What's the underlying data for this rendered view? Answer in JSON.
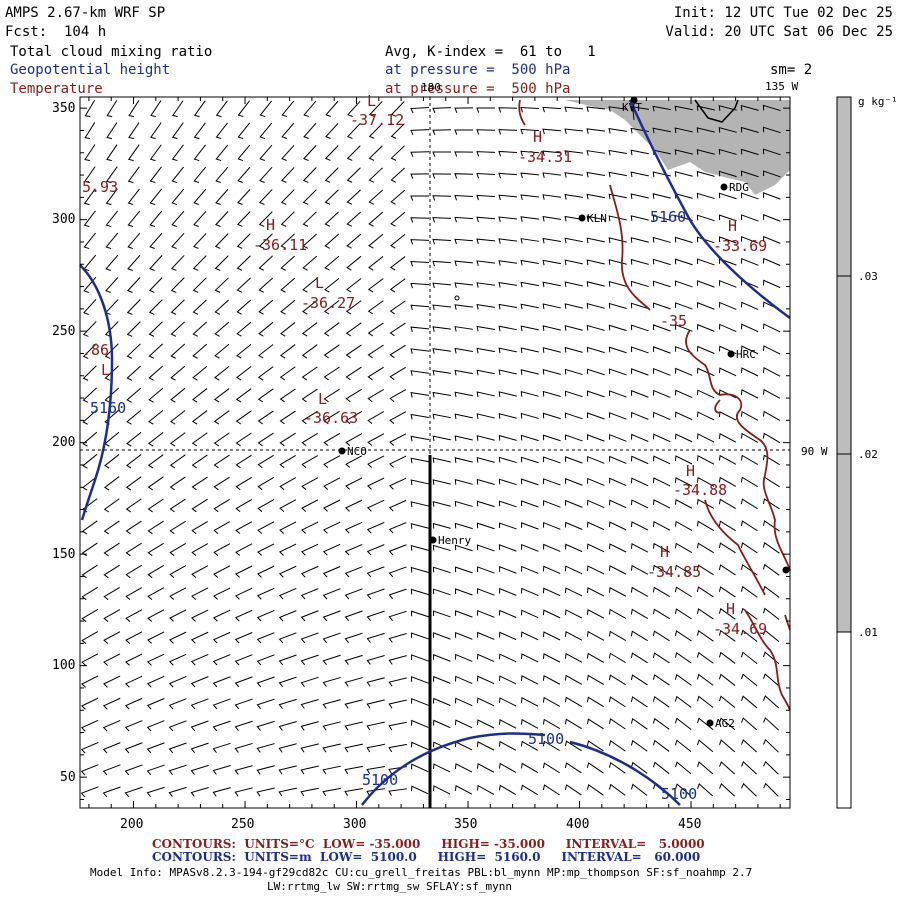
{
  "header": {
    "model": "AMPS 2.67-km WRF SP",
    "forecast": "Fcst:  104 h",
    "init": "Init: 12 UTC Tue 02 Dec 25",
    "valid": "Valid: 20 UTC Sat 06 Dec 25",
    "field1": "Total cloud mixing ratio",
    "field2": "Geopotential height",
    "field3": "Temperature",
    "avg": "Avg, K-index =  61 to   1",
    "pressure1": "at pressure =  500 hPa",
    "pressure2": "at pressure =  500 hPa",
    "sm": "sm= 2"
  },
  "grid_lines": {
    "lon_top": "180",
    "lon_mid": "135 W",
    "lon_right": "90 W"
  },
  "axes": {
    "x_ticks": [
      "200",
      "250",
      "300",
      "350",
      "400",
      "450"
    ],
    "y_ticks": [
      "350",
      "300",
      "250",
      "200",
      "150",
      "100",
      "50"
    ]
  },
  "colorbar": {
    "unit": "g kg⁻¹",
    "ticks": [
      ".03",
      ".02",
      ".01"
    ],
    "colors": {
      "shade": "#bdbdbd",
      "clear": "#ffffff"
    }
  },
  "colors": {
    "height_contour": "#1c2f8f",
    "temperature_contour": "#8a1c1c",
    "cloud_shade": "#b4b4b4"
  },
  "stations": [
    {
      "id": "kvt",
      "label": "KVT"
    },
    {
      "id": "rdg",
      "label": "RDG"
    },
    {
      "id": "kln",
      "label": "KLN"
    },
    {
      "id": "hrc",
      "label": "HRC"
    },
    {
      "id": "nco",
      "label": "NCO"
    },
    {
      "id": "henry",
      "label": "Henry"
    },
    {
      "id": "ag2",
      "label": "AG2"
    },
    {
      "id": "edge",
      "label": ""
    }
  ],
  "height_labels": {
    "h5160a": "5160",
    "h5160b": "5160",
    "h5100a": "5100",
    "h5100b": "5100",
    "h5100c": "5100"
  },
  "extrema": {
    "l1": {
      "mark": "L",
      "value": "-37.12"
    },
    "h1": {
      "mark": "H",
      "value": "-34.31"
    },
    "h2": {
      "mark": "H",
      "value": "-36.11"
    },
    "l2": {
      "mark": "L",
      "value": "-36.27"
    },
    "l3": {
      "mark": "L",
      "value": "-36.63"
    },
    "h3": {
      "mark": "H",
      "value": "-33.69"
    },
    "h4": {
      "mark": "H",
      "value": "-34.88"
    },
    "h5": {
      "mark": "H",
      "value": "-34.85"
    },
    "h6": {
      "mark": "H",
      "value": "-34.69"
    },
    "edge1": "5.93",
    "edge2": ".86",
    "edge3": "L",
    "t35": "-35"
  },
  "footer": {
    "contours1": "CONTOURS:  UNITS=°C  LOW= -35.000     HIGH= -35.000     INTERVAL=   5.0000",
    "contours2": "CONTOURS:  UNITS=m  LOW=  5100.0     HIGH=  5160.0     INTERVAL=   60.000",
    "model_info": "Model Info: MPASv8.2.3-194-gf29cd82c CU:cu_grell_freitas PBL:bl_mynn MP:mp_thompson SF:sf_noahmp 2.7",
    "model_info2": "LW:rrtmg_lw SW:rrtmg_sw SFLAY:sf_mynn"
  }
}
